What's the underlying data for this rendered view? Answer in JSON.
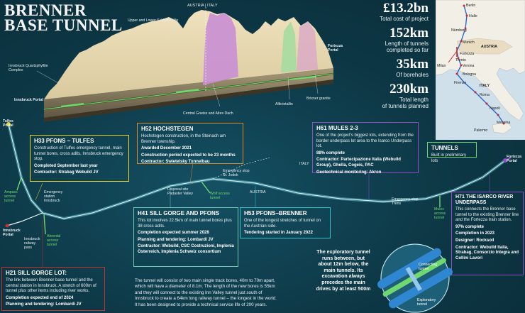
{
  "title": [
    "BRENNER",
    "BASE TUNNEL"
  ],
  "stats": [
    {
      "value": "£13.2bn",
      "caption": [
        "Total cost of project"
      ]
    },
    {
      "value": "152km",
      "caption": [
        "Length of tunnels",
        "completed so far"
      ]
    },
    {
      "value": "35km",
      "caption": [
        "Of boreholes"
      ]
    },
    {
      "value": "230km",
      "caption": [
        "Total length",
        "of tunnels planned"
      ]
    }
  ],
  "profile_labels": {
    "border": "AUSTRIA | ITALY",
    "schieferhulle": "Upper and Lower Schieferhülle",
    "quartzphyllite": [
      "Innsbruck Quartzphyllite",
      "Complex"
    ],
    "innsbruck_portal": "Innsbruck Portal",
    "fortezza_portal": [
      "Fortezza",
      "Portal"
    ],
    "central_gneiss": "Central Gneiss and Altes Dach",
    "altkristallin": "Altkristallin",
    "brixner": "Brixner granite"
  },
  "map_labels": [
    "Berlin",
    "Halle",
    "Nürnberg",
    "Munich",
    "AUSTRIA",
    "Fortezza",
    "Trento",
    "Verona",
    "Milan",
    "Bologna",
    "Firenze",
    "ITALY",
    "Roma",
    "Napoli",
    "Messina",
    "Palermo"
  ],
  "boxes": {
    "h33": {
      "head": "H33 PFONS – TULFES",
      "body": "Construction of Tulfes emergency tunnel, main tunnel bores, cross adits, Innsbruck emergency stop.",
      "b1": "Completed September last year",
      "b2": "Contractor: Strabag Webuild JV"
    },
    "h52": {
      "head": "H52 HOCHSTEGEN",
      "body": "Hochstegen construction, in the Steinach am Brenner township.",
      "b1": "Awarded December 2021",
      "b2": "Construction period expected to be 23 months",
      "b3": "Contractor: Swietelsky Tunnelbau"
    },
    "h61": {
      "head": "H61 MULES 2-3",
      "body": "One of the project's biggest lots, extending from the border underpass lot area to the Isarco Underpass lot.",
      "b1": "88% complete",
      "b2": "Contractor: Partecipazione Italia (Webuild Group), Ghella, Cogeis, PAC",
      "b3": "Geotechnical monitoring: Akron"
    },
    "tunnels": {
      "head": "TUNNELS",
      "body": "Built in preliminary lots"
    },
    "h71": {
      "head": "H71 THE ISARCO RIVER UNDERPASS",
      "body": "This connects the Brenner base tunnel to the existing Brenner line and the Fortezza train station.",
      "b1": "97% complete",
      "b2": "Completion in 2023",
      "b3": "Designer: Rocksoil",
      "b4": "Contractor: Webuild Italia, Strabag, Consorzio Integra and Collini Lavori"
    },
    "h41": {
      "head": "H41 SILL GORGE AND PFONS",
      "body": "This lot involves 22.5km of main tunnel bores plus 38 cross adits.",
      "b1": "Completion expected summer 2028",
      "b2": "Planning and tendering: Lombardi JV",
      "b3": "Contractor: Webuild, CSC Costruzioni, Implenia Österreich, Implenia Schweiz consortium"
    },
    "h53": {
      "head": "H53 PFONS–BRENNER",
      "body": "One of the longest stretches of tunnel on the Austrian side.",
      "b1": "Tendering started in January 2022"
    },
    "h21": {
      "head": "H21 SILL GORGE LOT:",
      "body": "The link between Brenner base tunnel and the central station in Innsbruck. A stretch of 600m of tunnel plus other items including river works.",
      "b1": "Completion expected end of 2024",
      "b2": "Planning and tendering: Lombardi JV"
    }
  },
  "route_labels": {
    "tulfes": [
      "Tulfes",
      "Portal"
    ],
    "ampass": [
      "Ampass",
      "access",
      "tunnel"
    ],
    "emergency_innsbruck": [
      "Emergency",
      "station",
      "Innsbruck"
    ],
    "innsbruck_railway": [
      "Innsbruck",
      "railway",
      "pass"
    ],
    "ahrental": [
      "Ahrental",
      "access",
      "tunnel"
    ],
    "innsbruck_portal": [
      "Innsbruck",
      "Portal"
    ],
    "emergency_stjodok": [
      "Emergency stop",
      "St. Jodok"
    ],
    "disposal": [
      "Disposal site",
      "Padaster Valley"
    ],
    "wolf": [
      "Wolf access",
      "tunnel"
    ],
    "austria": "AUSTRIA",
    "italy": "ITALY",
    "emergency_trens": [
      "Emergency stop",
      "Trens"
    ],
    "mules": [
      "Mules",
      "access",
      "tunnel"
    ],
    "fortezza": [
      "Fortezza",
      "Portal"
    ]
  },
  "exploratory": {
    "text": [
      "The exploratory tunnel",
      "runs between, but",
      "about 12m below, the",
      "main tunnels. Its",
      "excavation always",
      "precedes the main",
      "drives by at least 500m"
    ],
    "connecting": [
      "Connecting",
      "tunnel"
    ],
    "exploratory_label": [
      "Exploratory",
      "tunnel"
    ]
  },
  "bottom_note": [
    "The tunnel will consist of two main single track bores, 40m to 70m apart,",
    "which will have a diameter of 8.1m. The length of the new bores is 55km",
    "and they will connect to the existing Inn Valley tunnel just south of",
    "Innsbruck to create a 64km long railway tunnel – the longest in the world.",
    "It has been designed to provide a technical service life of 200 years."
  ],
  "colors": {
    "bg": "#0d3745",
    "accent_green": "#6fd86f",
    "yellow": "#e6d52a",
    "orange": "#d98a2b",
    "purple": "#8c4fc4",
    "teal": "#35c1c7",
    "red": "#c63030"
  }
}
